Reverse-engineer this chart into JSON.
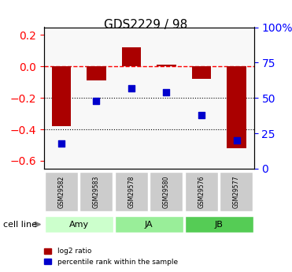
{
  "title": "GDS2229 / 98",
  "samples": [
    "GSM29582",
    "GSM29583",
    "GSM29578",
    "GSM29580",
    "GSM29576",
    "GSM29577"
  ],
  "log2_ratio": [
    -0.38,
    -0.09,
    0.12,
    0.01,
    -0.08,
    -0.52
  ],
  "percentile_rank": [
    18,
    48,
    57,
    54,
    38,
    20
  ],
  "cell_lines": [
    {
      "label": "Amy",
      "indices": [
        0,
        1
      ],
      "color": "#ccffcc"
    },
    {
      "label": "JA",
      "indices": [
        2,
        3
      ],
      "color": "#99ee99"
    },
    {
      "label": "JB",
      "indices": [
        4,
        5
      ],
      "color": "#55cc55"
    }
  ],
  "bar_color": "#aa0000",
  "dot_color": "#0000cc",
  "ylim_left": [
    -0.65,
    0.25
  ],
  "ylim_right": [
    0,
    100
  ],
  "yticks_left": [
    -0.6,
    -0.4,
    -0.2,
    0.0,
    0.2
  ],
  "yticks_right": [
    0,
    25,
    50,
    75,
    100
  ],
  "hline_y": 0.0,
  "dotted_lines": [
    -0.2,
    -0.4
  ],
  "background_color": "#ffffff",
  "plot_bg": "#ffffff",
  "grid_color": "#000000",
  "legend_items": [
    "log2 ratio",
    "percentile rank within the sample"
  ]
}
